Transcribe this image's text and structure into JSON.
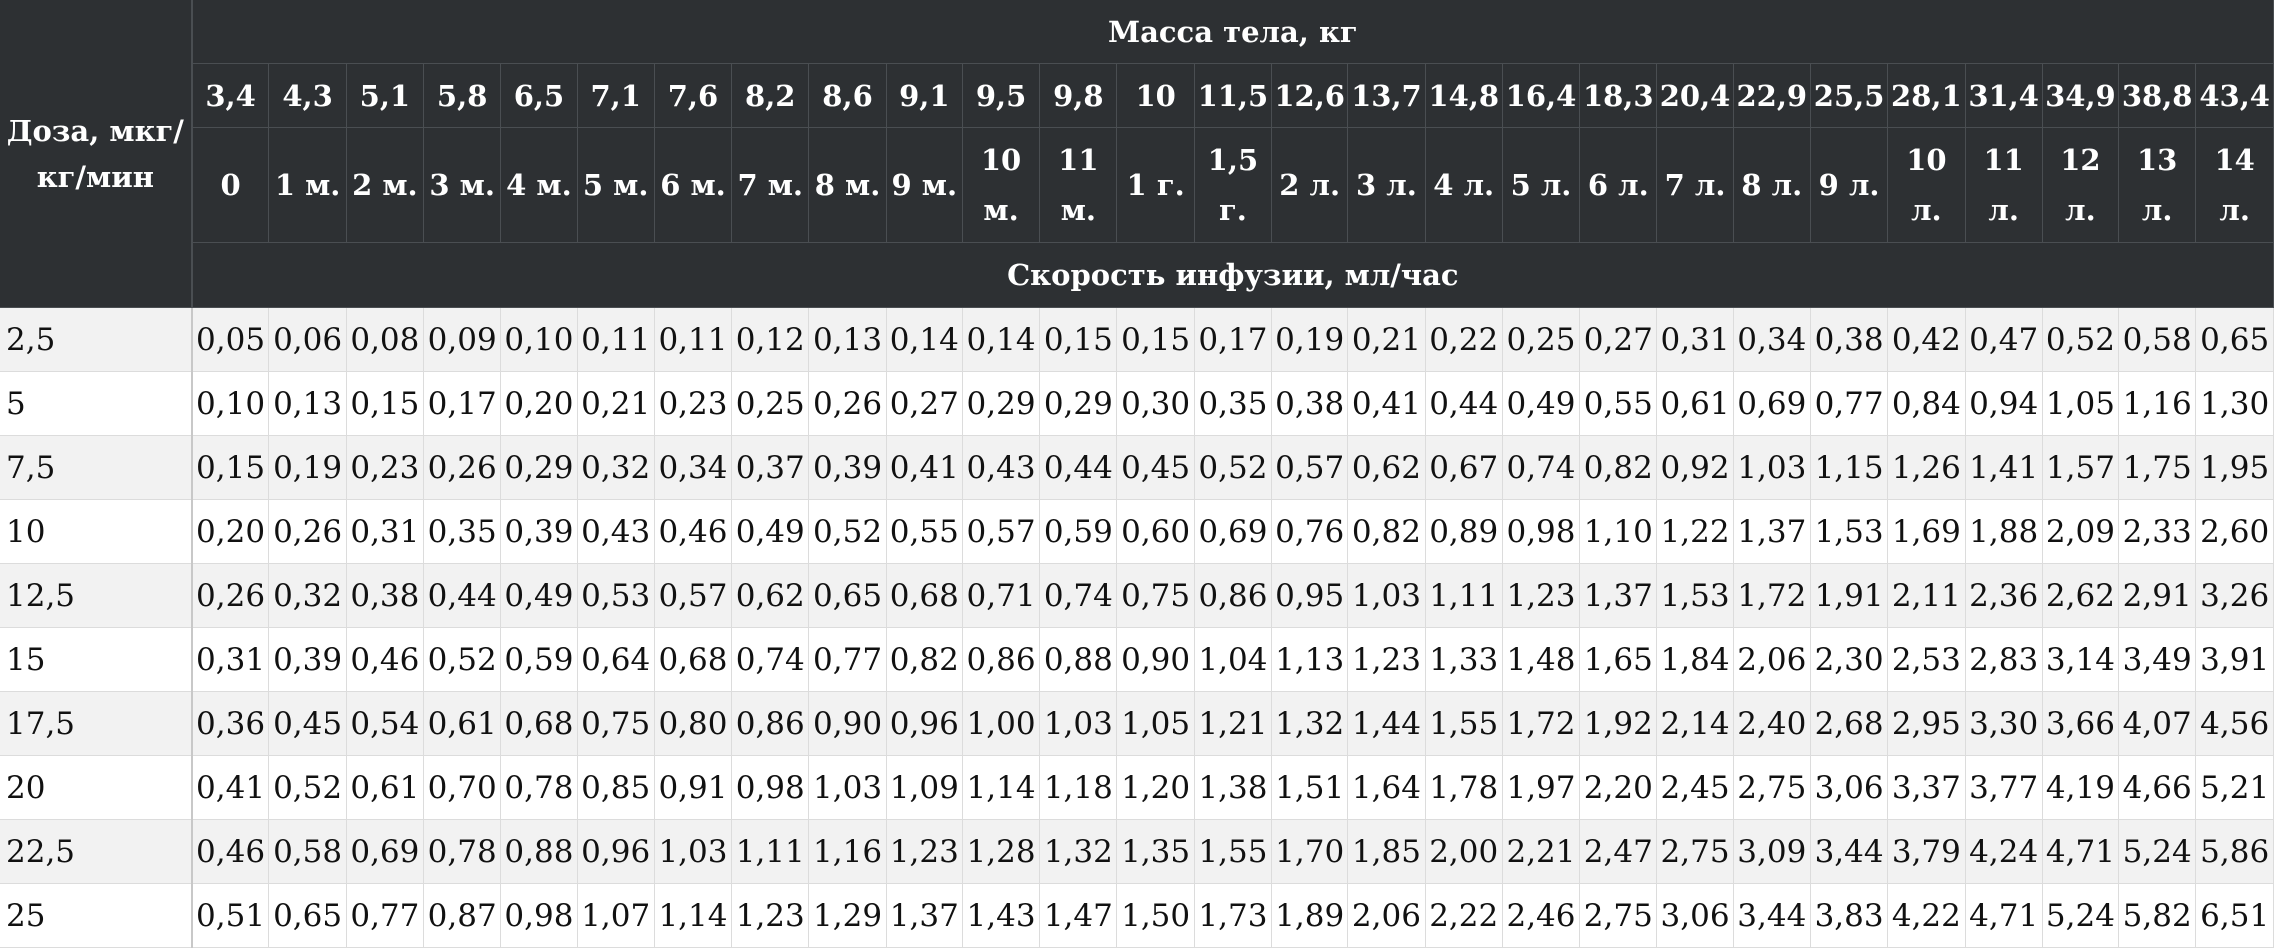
{
  "header": {
    "dose_label": "Доза, мкг/ кг/мин",
    "mass_label": "Масса тела, кг",
    "speed_label": "Скорость инфузии, мл/час",
    "weights": [
      "3,4",
      "4,3",
      "5,1",
      "5,8",
      "6,5",
      "7,1",
      "7,6",
      "8,2",
      "8,6",
      "9,1",
      "9,5",
      "9,8",
      "10",
      "11,5",
      "12,6",
      "13,7",
      "14,8",
      "16,4",
      "18,3",
      "20,4",
      "22,9",
      "25,5",
      "28,1",
      "31,4",
      "34,9",
      "38,8",
      "43,4"
    ],
    "ages": [
      "0",
      "1 м.",
      "2 м.",
      "3 м.",
      "4 м.",
      "5 м.",
      "6 м.",
      "7 м.",
      "8 м.",
      "9 м.",
      "10 м.",
      "11 м.",
      "1 г.",
      "1,5 г.",
      "2 л.",
      "3 л.",
      "4 л.",
      "5 л.",
      "6 л.",
      "7 л.",
      "8 л.",
      "9 л.",
      "10 л.",
      "11 л.",
      "12 л.",
      "13 л.",
      "14 л."
    ]
  },
  "rows": [
    {
      "dose": "2,5",
      "values": [
        "0,05",
        "0,06",
        "0,08",
        "0,09",
        "0,10",
        "0,11",
        "0,11",
        "0,12",
        "0,13",
        "0,14",
        "0,14",
        "0,15",
        "0,15",
        "0,17",
        "0,19",
        "0,21",
        "0,22",
        "0,25",
        "0,27",
        "0,31",
        "0,34",
        "0,38",
        "0,42",
        "0,47",
        "0,52",
        "0,58",
        "0,65"
      ]
    },
    {
      "dose": "5",
      "values": [
        "0,10",
        "0,13",
        "0,15",
        "0,17",
        "0,20",
        "0,21",
        "0,23",
        "0,25",
        "0,26",
        "0,27",
        "0,29",
        "0,29",
        "0,30",
        "0,35",
        "0,38",
        "0,41",
        "0,44",
        "0,49",
        "0,55",
        "0,61",
        "0,69",
        "0,77",
        "0,84",
        "0,94",
        "1,05",
        "1,16",
        "1,30"
      ]
    },
    {
      "dose": "7,5",
      "values": [
        "0,15",
        "0,19",
        "0,23",
        "0,26",
        "0,29",
        "0,32",
        "0,34",
        "0,37",
        "0,39",
        "0,41",
        "0,43",
        "0,44",
        "0,45",
        "0,52",
        "0,57",
        "0,62",
        "0,67",
        "0,74",
        "0,82",
        "0,92",
        "1,03",
        "1,15",
        "1,26",
        "1,41",
        "1,57",
        "1,75",
        "1,95"
      ]
    },
    {
      "dose": "10",
      "values": [
        "0,20",
        "0,26",
        "0,31",
        "0,35",
        "0,39",
        "0,43",
        "0,46",
        "0,49",
        "0,52",
        "0,55",
        "0,57",
        "0,59",
        "0,60",
        "0,69",
        "0,76",
        "0,82",
        "0,89",
        "0,98",
        "1,10",
        "1,22",
        "1,37",
        "1,53",
        "1,69",
        "1,88",
        "2,09",
        "2,33",
        "2,60"
      ]
    },
    {
      "dose": "12,5",
      "values": [
        "0,26",
        "0,32",
        "0,38",
        "0,44",
        "0,49",
        "0,53",
        "0,57",
        "0,62",
        "0,65",
        "0,68",
        "0,71",
        "0,74",
        "0,75",
        "0,86",
        "0,95",
        "1,03",
        "1,11",
        "1,23",
        "1,37",
        "1,53",
        "1,72",
        "1,91",
        "2,11",
        "2,36",
        "2,62",
        "2,91",
        "3,26"
      ]
    },
    {
      "dose": "15",
      "values": [
        "0,31",
        "0,39",
        "0,46",
        "0,52",
        "0,59",
        "0,64",
        "0,68",
        "0,74",
        "0,77",
        "0,82",
        "0,86",
        "0,88",
        "0,90",
        "1,04",
        "1,13",
        "1,23",
        "1,33",
        "1,48",
        "1,65",
        "1,84",
        "2,06",
        "2,30",
        "2,53",
        "2,83",
        "3,14",
        "3,49",
        "3,91"
      ]
    },
    {
      "dose": "17,5",
      "values": [
        "0,36",
        "0,45",
        "0,54",
        "0,61",
        "0,68",
        "0,75",
        "0,80",
        "0,86",
        "0,90",
        "0,96",
        "1,00",
        "1,03",
        "1,05",
        "1,21",
        "1,32",
        "1,44",
        "1,55",
        "1,72",
        "1,92",
        "2,14",
        "2,40",
        "2,68",
        "2,95",
        "3,30",
        "3,66",
        "4,07",
        "4,56"
      ]
    },
    {
      "dose": "20",
      "values": [
        "0,41",
        "0,52",
        "0,61",
        "0,70",
        "0,78",
        "0,85",
        "0,91",
        "0,98",
        "1,03",
        "1,09",
        "1,14",
        "1,18",
        "1,20",
        "1,38",
        "1,51",
        "1,64",
        "1,78",
        "1,97",
        "2,20",
        "2,45",
        "2,75",
        "3,06",
        "3,37",
        "3,77",
        "4,19",
        "4,66",
        "5,21"
      ]
    },
    {
      "dose": "22,5",
      "values": [
        "0,46",
        "0,58",
        "0,69",
        "0,78",
        "0,88",
        "0,96",
        "1,03",
        "1,11",
        "1,16",
        "1,23",
        "1,28",
        "1,32",
        "1,35",
        "1,55",
        "1,70",
        "1,85",
        "2,00",
        "2,21",
        "2,47",
        "2,75",
        "3,09",
        "3,44",
        "3,79",
        "4,24",
        "4,71",
        "5,24",
        "5,86"
      ]
    },
    {
      "dose": "25",
      "values": [
        "0,51",
        "0,65",
        "0,77",
        "0,87",
        "0,98",
        "1,07",
        "1,14",
        "1,23",
        "1,29",
        "1,37",
        "1,43",
        "1,47",
        "1,50",
        "1,73",
        "1,89",
        "2,06",
        "2,22",
        "2,46",
        "2,75",
        "3,06",
        "3,44",
        "3,83",
        "4,22",
        "4,71",
        "5,24",
        "5,82",
        "6,51"
      ]
    }
  ]
}
